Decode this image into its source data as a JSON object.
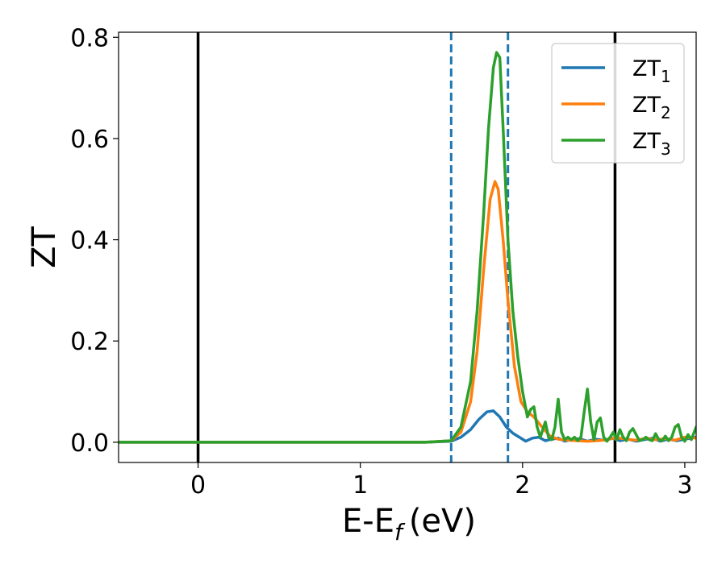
{
  "chart_data": {
    "type": "line",
    "xlabel": "E-E",
    "xlabel_sub": "f",
    "xlabel_unit": "(eV)",
    "ylabel": "ZT",
    "xlim": [
      -0.49,
      3.07
    ],
    "ylim": [
      -0.04,
      0.81
    ],
    "xticks": [
      0,
      1,
      2,
      3
    ],
    "yticks": [
      0.0,
      0.2,
      0.4,
      0.6,
      0.8
    ],
    "ytick_labels": [
      "0.0",
      "0.2",
      "0.4",
      "0.6",
      "0.8"
    ],
    "grid": false,
    "legend_position": "top-right",
    "vlines": [
      {
        "x": 0.0,
        "style": "solid",
        "color": "#000000"
      },
      {
        "x": 2.57,
        "style": "solid",
        "color": "#000000"
      },
      {
        "x": 1.56,
        "style": "dashed",
        "color": "#1f77b4"
      },
      {
        "x": 1.91,
        "style": "dashed",
        "color": "#1f77b4"
      }
    ],
    "series": [
      {
        "name": "ZT",
        "sub": "1",
        "color": "#1f77b4",
        "x": [
          -0.49,
          1.4,
          1.56,
          1.62,
          1.68,
          1.73,
          1.78,
          1.82,
          1.86,
          1.9,
          1.94,
          1.98,
          2.02,
          2.06,
          2.1,
          2.14,
          2.18,
          2.22,
          2.26,
          2.3,
          2.35,
          2.4,
          2.45,
          2.5,
          2.55,
          2.6,
          2.65,
          2.7,
          2.75,
          2.8,
          2.85,
          2.9,
          2.95,
          3.0,
          3.07
        ],
        "y": [
          0.0,
          0.0,
          0.002,
          0.01,
          0.025,
          0.045,
          0.06,
          0.062,
          0.05,
          0.03,
          0.018,
          0.01,
          0.002,
          0.008,
          0.01,
          0.003,
          0.006,
          0.008,
          0.002,
          0.005,
          0.007,
          0.002,
          0.006,
          0.004,
          0.008,
          0.003,
          0.006,
          0.002,
          0.005,
          0.008,
          0.002,
          0.006,
          0.003,
          0.006,
          0.01
        ]
      },
      {
        "name": "ZT",
        "sub": "2",
        "color": "#ff7f0e",
        "x": [
          -0.49,
          1.4,
          1.56,
          1.62,
          1.68,
          1.72,
          1.76,
          1.8,
          1.83,
          1.85,
          1.88,
          1.91,
          1.95,
          1.99,
          2.03,
          2.07,
          2.12,
          2.17,
          2.22,
          2.28,
          2.34,
          2.4,
          2.46,
          2.52,
          2.58,
          2.64,
          2.7,
          2.76,
          2.82,
          2.88,
          2.94,
          3.0,
          3.07
        ],
        "y": [
          0.0,
          0.0,
          0.003,
          0.02,
          0.08,
          0.18,
          0.34,
          0.48,
          0.515,
          0.5,
          0.4,
          0.28,
          0.15,
          0.08,
          0.06,
          0.05,
          0.03,
          0.012,
          0.006,
          0.004,
          0.003,
          0.002,
          0.003,
          0.005,
          0.009,
          0.006,
          0.004,
          0.008,
          0.005,
          0.007,
          0.004,
          0.01,
          0.008
        ]
      },
      {
        "name": "ZT",
        "sub": "3",
        "color": "#2ca02c",
        "x": [
          -0.49,
          1.4,
          1.56,
          1.62,
          1.68,
          1.72,
          1.76,
          1.79,
          1.82,
          1.84,
          1.86,
          1.88,
          1.91,
          1.94,
          1.97,
          2.0,
          2.03,
          2.05,
          2.07,
          2.09,
          2.11,
          2.14,
          2.16,
          2.18,
          2.2,
          2.22,
          2.24,
          2.26,
          2.28,
          2.3,
          2.32,
          2.34,
          2.36,
          2.38,
          2.4,
          2.42,
          2.44,
          2.46,
          2.48,
          2.5,
          2.52,
          2.54,
          2.56,
          2.58,
          2.6,
          2.62,
          2.64,
          2.66,
          2.68,
          2.7,
          2.72,
          2.74,
          2.76,
          2.78,
          2.8,
          2.82,
          2.84,
          2.86,
          2.88,
          2.9,
          2.92,
          2.94,
          2.96,
          2.98,
          3.0,
          3.02,
          3.04,
          3.07
        ],
        "y": [
          0.0,
          0.0,
          0.003,
          0.03,
          0.12,
          0.26,
          0.45,
          0.62,
          0.74,
          0.77,
          0.76,
          0.62,
          0.4,
          0.26,
          0.17,
          0.1,
          0.05,
          0.065,
          0.07,
          0.03,
          0.01,
          0.04,
          0.01,
          0.005,
          0.03,
          0.085,
          0.02,
          0.005,
          0.01,
          0.005,
          0.01,
          0.003,
          0.01,
          0.06,
          0.105,
          0.04,
          0.005,
          0.04,
          0.048,
          0.01,
          0.002,
          0.01,
          0.02,
          0.005,
          0.025,
          0.01,
          0.003,
          0.02,
          0.027,
          0.015,
          0.003,
          0.005,
          0.01,
          0.005,
          0.003,
          0.017,
          0.005,
          0.003,
          0.012,
          0.003,
          0.01,
          0.03,
          0.035,
          0.01,
          0.002,
          0.015,
          0.005,
          0.03
        ]
      }
    ]
  }
}
